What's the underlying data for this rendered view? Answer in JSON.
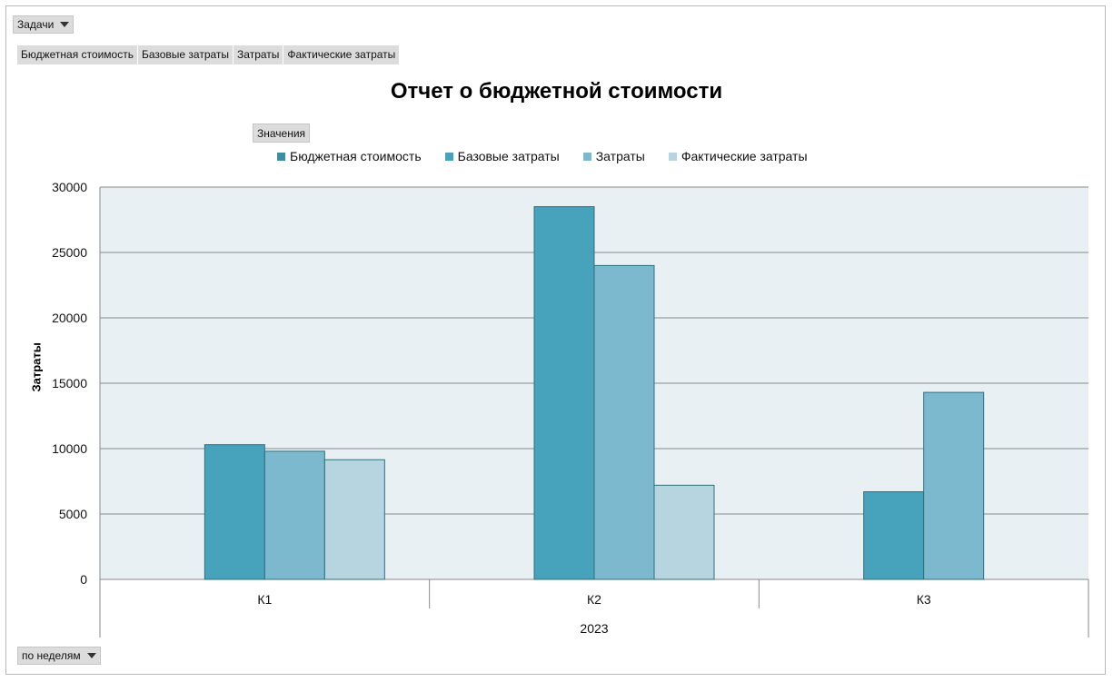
{
  "toolbar": {
    "tasks_label": "Задачи",
    "weeks_label": "по неделям",
    "values_label": "Значения"
  },
  "filters": [
    "Бюджетная стоимость",
    "Базовые затраты",
    "Затраты",
    "Фактические затраты"
  ],
  "chart_data": {
    "type": "bar",
    "title": "Отчет о бюджетной стоимости",
    "ylabel": "Затраты",
    "xlabel": "2023",
    "ylim": [
      0,
      30000
    ],
    "yticks": [
      0,
      5000,
      10000,
      15000,
      20000,
      25000,
      30000
    ],
    "categories": [
      "К1",
      "К2",
      "К3"
    ],
    "legend_position": "top",
    "grid": true,
    "colors": {
      "plot_bg": "#e9f0f4",
      "grid": "#8a8a8a",
      "bar_border": "#2f6e7c"
    },
    "series": [
      {
        "name": "Бюджетная стоимость",
        "legend_color": "#3a8ea5",
        "color": "#47a2bb",
        "values": [
          null,
          null,
          null
        ]
      },
      {
        "name": "Базовые затраты",
        "legend_color": "#47a2bb",
        "color": "#47a2bb",
        "values": [
          10300,
          28500,
          6700
        ]
      },
      {
        "name": "Затраты",
        "legend_color": "#7cb9ce",
        "color": "#7cb9ce",
        "values": [
          9800,
          24000,
          14300
        ]
      },
      {
        "name": "Фактические затраты",
        "legend_color": "#b7d5e0",
        "color": "#b7d5e0",
        "values": [
          9150,
          7200,
          null
        ]
      }
    ]
  }
}
